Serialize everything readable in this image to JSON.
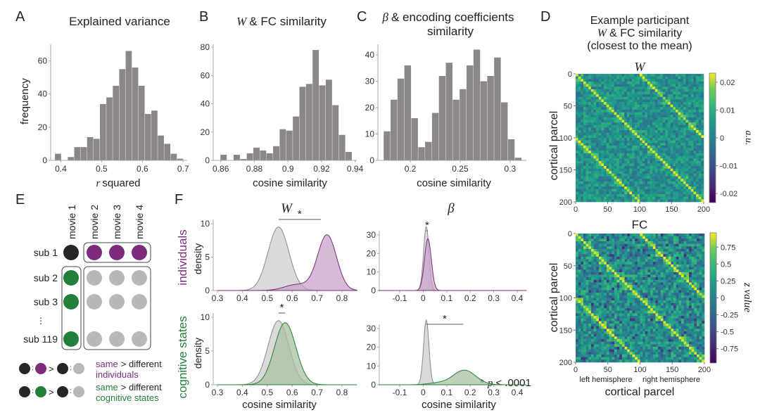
{
  "colors": {
    "bar": "#8c8787",
    "axis": "#a8a8a8",
    "purple": "#7b2d7b",
    "purple_fill": "#c9a3c9",
    "green": "#237f3a",
    "green_fill": "#a9c2a0",
    "gray_fill": "#cfcccc",
    "gray_line": "#8a8888",
    "black_dot": "#262626",
    "gray_dot": "#b8b8b8"
  },
  "panel_labels": [
    "A",
    "B",
    "C",
    "D",
    "E",
    "F"
  ],
  "chart_data": [
    {
      "id": "A",
      "type": "bar",
      "title": "Explained variance",
      "xlabel_italic": "r",
      "xlabel": "squared",
      "ylabel": "frequency",
      "bin_start": 0.3855,
      "bin_width": 0.01577,
      "values": [
        4,
        0,
        2,
        8,
        8,
        14,
        13,
        34,
        38,
        45,
        55,
        66,
        56,
        45,
        28,
        30,
        15,
        10,
        4,
        1
      ],
      "xticks": [
        0.4,
        0.5,
        0.6,
        0.7
      ],
      "xticklabels": [
        "0.4",
        "0.5",
        "0.6",
        "0.7"
      ],
      "yticks": [
        0,
        20,
        40,
        60
      ],
      "xlim": [
        0.375,
        0.71
      ],
      "ylim": [
        0,
        70
      ]
    },
    {
      "id": "B",
      "type": "bar",
      "title_italic": "W",
      "title": "& FC similarity",
      "xlabel": "cosine similarity",
      "ylabel": "",
      "bin_start": 0.8598,
      "bin_width": 0.00392,
      "values": [
        4,
        0,
        4,
        1,
        5,
        9,
        7,
        5,
        10,
        22,
        21,
        31,
        52,
        54,
        78,
        53,
        57,
        39,
        18,
        6
      ],
      "xticks": [
        0.86,
        0.88,
        0.9,
        0.92,
        0.94
      ],
      "xticklabels": [
        "0.86",
        "0.88",
        "0.9",
        "0.92",
        "0.94"
      ],
      "yticks": [
        0,
        20,
        40,
        60,
        80
      ],
      "xlim": [
        0.8555,
        0.941
      ],
      "ylim": [
        0,
        82
      ]
    },
    {
      "id": "C",
      "type": "bar",
      "title_symbol": "β",
      "title": "& encoding coefficients",
      "title_line2": "similarity",
      "xlabel": "cosine similarity",
      "ylabel": "",
      "bin_start": 0.1733,
      "bin_width": 0.00692,
      "values": [
        11,
        23,
        31,
        36,
        16,
        5,
        7,
        18,
        32,
        37,
        23,
        27,
        36,
        42,
        30,
        32,
        39,
        22,
        8,
        1
      ],
      "xticks": [
        0.2,
        0.25,
        0.3
      ],
      "xticklabels": [
        "0.2",
        "0.25",
        "0.3"
      ],
      "yticks": [
        0,
        10,
        20,
        30,
        40
      ],
      "xlim": [
        0.1675,
        0.3163
      ],
      "ylim": [
        0,
        44
      ]
    },
    {
      "id": "D-W",
      "type": "heatmap",
      "title_italic": "W",
      "ylabel": "cortical parcel",
      "xticks": [
        "0",
        "50",
        "100",
        "150",
        "200"
      ],
      "yticks": [
        "0",
        "50",
        "100",
        "150",
        "200"
      ],
      "colorbar_ticks": [
        "0.02",
        "0.01",
        "0",
        "-0.01",
        "-0.02"
      ],
      "colorbar_label": "a.u.",
      "range": [
        -0.023,
        0.023
      ]
    },
    {
      "id": "D-FC",
      "type": "heatmap",
      "title": "FC",
      "ylabel": "cortical parcel",
      "xlabel": "cortical parcel",
      "xticks": [
        "0",
        "50",
        "100",
        "150",
        "200"
      ],
      "yticks": [
        "0",
        "50",
        "100",
        "150",
        "200"
      ],
      "xsublabels": [
        "left hemisphere",
        "right hemisphere"
      ],
      "colorbar_ticks": [
        "0.75",
        "0.5",
        "0.25",
        "0",
        "-0.25",
        "-0.5",
        "-0.75"
      ],
      "colorbar_label": "z value",
      "range": [
        -0.95,
        0.95
      ]
    },
    {
      "id": "F-W-individuals",
      "type": "area",
      "ylabel": "density",
      "xticks": [
        "0.3",
        "0.4",
        "0.5",
        "0.6",
        "0.7",
        "0.8"
      ],
      "yticks": [
        "0",
        "5",
        "10"
      ],
      "xlim": [
        0.3,
        0.86
      ],
      "ylim": [
        0,
        10.5
      ],
      "series": [
        {
          "name": "different",
          "color": "gray",
          "peaks": [
            {
              "mu": 0.545,
              "sigma": 0.042,
              "amp": 9.5
            }
          ]
        },
        {
          "name": "same",
          "color": "purple",
          "peaks": [
            {
              "mu": 0.74,
              "sigma": 0.038,
              "amp": 8.3
            },
            {
              "mu": 0.62,
              "sigma": 0.05,
              "amp": 0.9
            }
          ]
        }
      ],
      "significance_bar": [
        0.545,
        0.715
      ],
      "significance_label": "*"
    },
    {
      "id": "F-W-cognitive",
      "type": "area",
      "xlabel": "cosine similarity",
      "ylabel": "density",
      "xticks": [
        "0.3",
        "0.4",
        "0.5",
        "0.6",
        "0.7",
        "0.8"
      ],
      "yticks": [
        "0",
        "5",
        "10"
      ],
      "xlim": [
        0.3,
        0.86
      ],
      "ylim": [
        0,
        10.5
      ],
      "series": [
        {
          "name": "different",
          "color": "gray",
          "peaks": [
            {
              "mu": 0.545,
              "sigma": 0.042,
              "amp": 9.5
            }
          ]
        },
        {
          "name": "same",
          "color": "green",
          "peaks": [
            {
              "mu": 0.572,
              "sigma": 0.043,
              "amp": 9.2
            }
          ]
        }
      ],
      "significance_bar": [
        0.545,
        0.572
      ],
      "significance_label": "*"
    },
    {
      "id": "F-beta-individuals",
      "type": "area",
      "xticks": [
        "-0.1",
        "0",
        "0.1",
        "0.2",
        "0.3",
        "0.4"
      ],
      "yticks": [
        "0",
        "10",
        "20",
        "30"
      ],
      "xlim": [
        -0.19,
        0.44
      ],
      "ylim": [
        0,
        37
      ],
      "series": [
        {
          "name": "different",
          "color": "gray",
          "peaks": [
            {
              "mu": 0.013,
              "sigma": 0.0115,
              "amp": 34.5
            }
          ]
        },
        {
          "name": "same",
          "color": "purple",
          "peaks": [
            {
              "mu": 0.02,
              "sigma": 0.0145,
              "amp": 28
            }
          ]
        }
      ],
      "significance_bar": [
        0.013,
        0.02
      ],
      "significance_label": "*"
    },
    {
      "id": "F-beta-cognitive",
      "type": "area",
      "xlabel": "cosine similarity",
      "xticks": [
        "-0.1",
        "0",
        "0.1",
        "0.2",
        "0.3",
        "0.4"
      ],
      "yticks": [
        "0",
        "10",
        "20",
        "30"
      ],
      "xlim": [
        -0.19,
        0.44
      ],
      "ylim": [
        0,
        37
      ],
      "series": [
        {
          "name": "different",
          "color": "gray",
          "peaks": [
            {
              "mu": 0.013,
              "sigma": 0.0115,
              "amp": 34.5
            }
          ]
        },
        {
          "name": "same",
          "color": "green",
          "peaks": [
            {
              "mu": 0.175,
              "sigma": 0.048,
              "amp": 7.8
            },
            {
              "mu": 0.06,
              "sigma": 0.04,
              "amp": 0.9
            }
          ]
        }
      ],
      "significance_bar": [
        0.013,
        0.17
      ],
      "significance_label": "*"
    }
  ],
  "panel_D": {
    "title_line1": "Example participant",
    "title_line2_italic": "W",
    "title_line2": "& FC similarity",
    "title_line3": "(closest to the mean)"
  },
  "panel_E": {
    "columns": [
      "movie 1",
      "movie 2",
      "movie 3",
      "movie 4"
    ],
    "rows": [
      "sub 1",
      "sub 2",
      "sub 3",
      "⋮",
      "sub 119"
    ],
    "legend": [
      {
        "same": "same",
        "rest": "> different",
        "category": "individuals",
        "color": "purple"
      },
      {
        "same": "same",
        "rest": "> different",
        "category": "cognitive states",
        "color": "green"
      }
    ],
    "colon": ":",
    "gt": ">"
  },
  "panel_F": {
    "col_titles": {
      "W": "W",
      "beta": "β"
    },
    "row_labels": [
      "individuals",
      "cognitive states"
    ],
    "pvalue_star": "*",
    "pvalue_p": "p",
    "pvalue_rest": "< .0001"
  }
}
